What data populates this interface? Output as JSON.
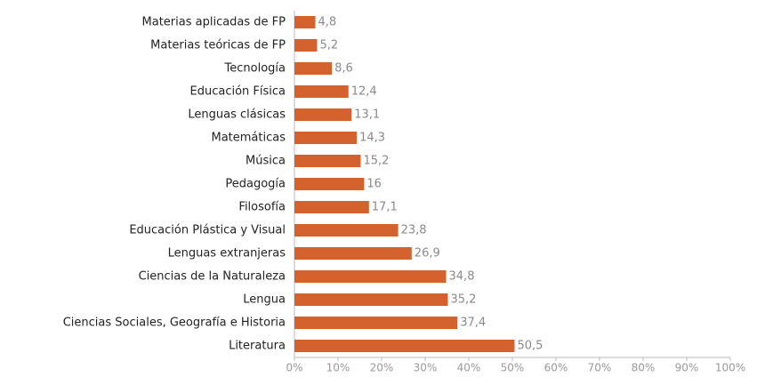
{
  "chart_data": {
    "type": "bar",
    "orientation": "horizontal",
    "categories": [
      "Materias aplicadas de FP",
      "Materias teóricas de FP",
      "Tecnología",
      "Educación Física",
      "Lenguas clásicas",
      "Matemáticas",
      "Música",
      "Pedagogía",
      "Filosofía",
      "Educación Plástica y Visual",
      "Lenguas extranjeras",
      "Ciencias de la Naturaleza",
      "Lengua",
      "Ciencias Sociales, Geografía e Historia",
      "Literatura"
    ],
    "values": [
      4.8,
      5.2,
      8.6,
      12.4,
      13.1,
      14.3,
      15.2,
      16,
      17.1,
      23.8,
      26.9,
      34.8,
      35.2,
      37.4,
      50.5
    ],
    "value_labels": [
      "4,8",
      "5,2",
      "8,6",
      "12,4",
      "13,1",
      "14,3",
      "15,2",
      "16",
      "17,1",
      "23,8",
      "26,9",
      "34,8",
      "35,2",
      "37,4",
      "50,5"
    ],
    "color": "#d4622f",
    "xlim": [
      0,
      100
    ],
    "xticks": [
      {
        "value": 0,
        "label": "0%"
      },
      {
        "value": 10,
        "label": "10%"
      },
      {
        "value": 20,
        "label": "20%"
      },
      {
        "value": 30,
        "label": "30%"
      },
      {
        "value": 40,
        "label": "40%"
      },
      {
        "value": 50,
        "label": "50%"
      },
      {
        "value": 60,
        "label": "60%"
      },
      {
        "value": 70,
        "label": "70%"
      },
      {
        "value": 80,
        "label": "80%"
      },
      {
        "value": 90,
        "label": "90%"
      },
      {
        "value": 100,
        "label": "100%"
      }
    ],
    "grid": false
  }
}
